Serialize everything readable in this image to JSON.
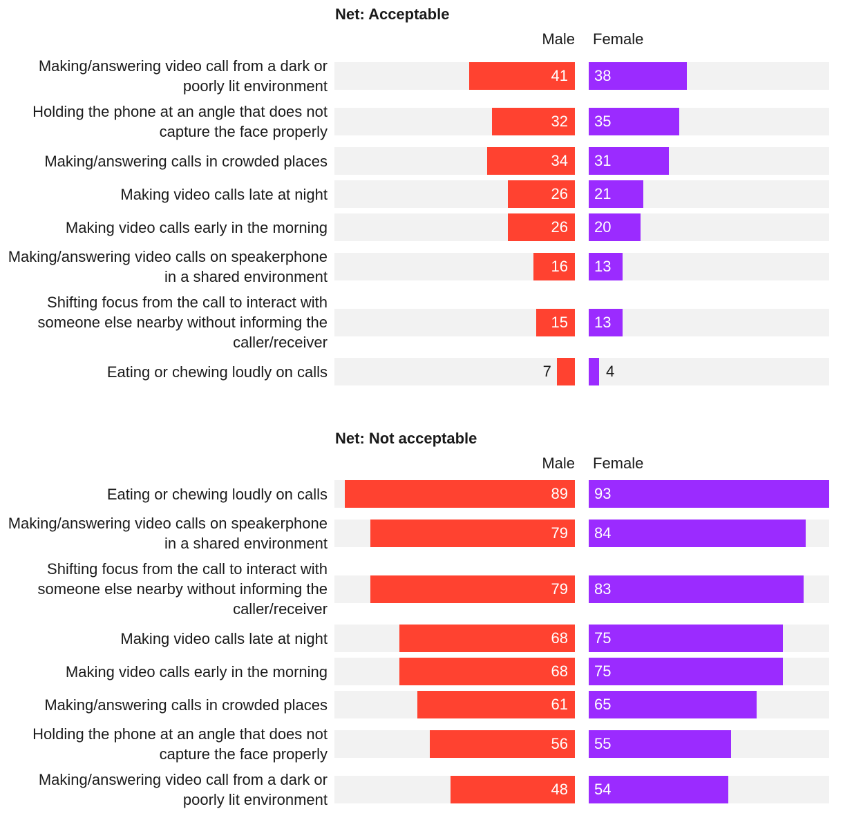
{
  "chart_data": [
    {
      "type": "butterfly",
      "title": "Net: Acceptable",
      "categories": [
        "Making/answering video call from a dark or poorly lit environment",
        "Holding the phone at an angle that does not capture the face properly",
        "Making/answering calls in crowded places",
        "Making video calls late at night",
        "Making video calls early in the morning",
        "Making/answering video calls on speakerphone in a shared environment",
        "Shifting focus from the call to interact with someone else nearby without informing the caller/receiver",
        "Eating or chewing loudly on calls"
      ],
      "series": [
        {
          "name": "Male",
          "color": "#ff4230",
          "values": [
            41,
            32,
            34,
            26,
            26,
            16,
            15,
            7
          ]
        },
        {
          "name": "Female",
          "color": "#9b2bff",
          "values": [
            38,
            35,
            31,
            21,
            20,
            13,
            13,
            4
          ]
        }
      ]
    },
    {
      "type": "butterfly",
      "title": "Net: Not acceptable",
      "categories": [
        "Eating or chewing loudly on calls",
        "Making/answering video calls on speakerphone in a shared environment",
        "Shifting focus from the call to interact with someone else nearby without informing the caller/receiver",
        "Making video calls late at night",
        "Making video calls early in the morning",
        "Making/answering calls in crowded places",
        "Holding the phone at an angle that does not capture the face properly",
        "Making/answering video call from a dark or poorly lit environment"
      ],
      "series": [
        {
          "name": "Male",
          "color": "#ff4230",
          "values": [
            89,
            79,
            79,
            68,
            68,
            61,
            56,
            48
          ]
        },
        {
          "name": "Female",
          "color": "#9b2bff",
          "values": [
            93,
            84,
            83,
            75,
            75,
            65,
            55,
            54
          ]
        }
      ]
    }
  ]
}
